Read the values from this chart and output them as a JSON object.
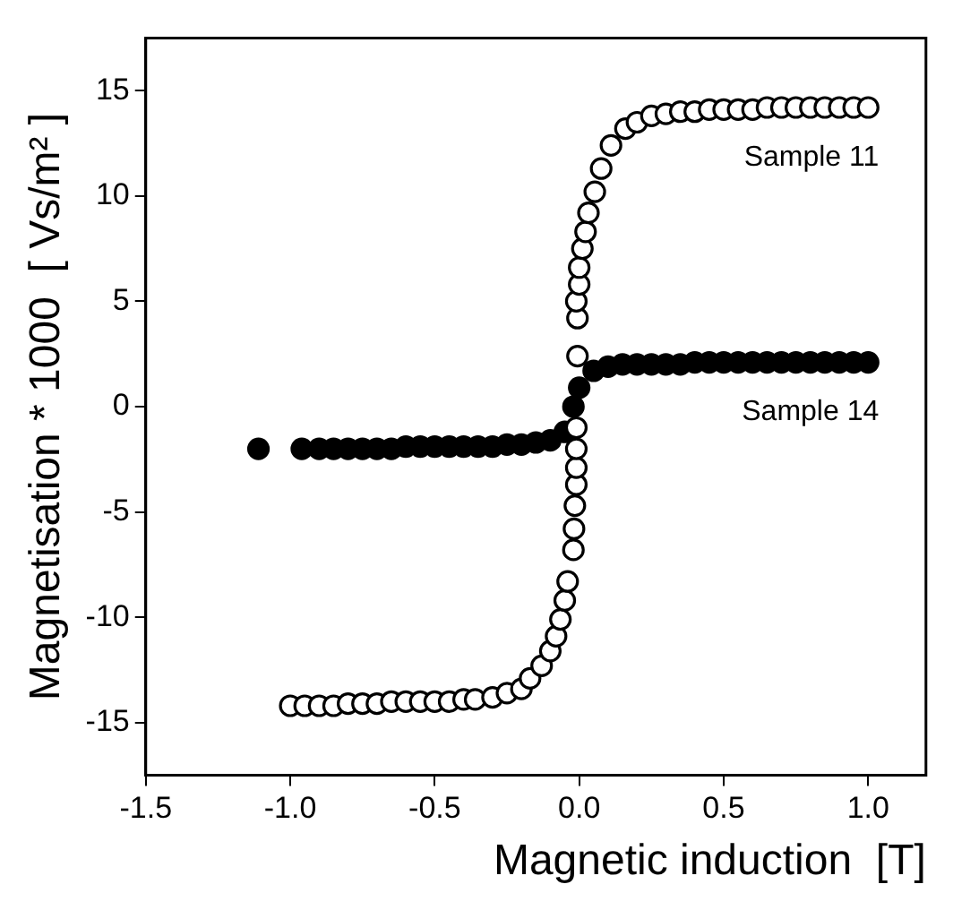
{
  "chart_data": {
    "type": "scatter",
    "xlabel": "Magnetic induction  [T]",
    "ylabel": "Magnetisation * 1000  [ Vs/m² ]",
    "xlim": [
      -1.5,
      1.2
    ],
    "xticks": [
      -1.5,
      {
        "value": -1,
        "label": "-1.0"
      },
      -0.5,
      {
        "value": 0,
        "label": "0.0"
      },
      0.5,
      {
        "value": 1,
        "label": "1.0"
      }
    ],
    "ylim": [
      -17.5,
      17.5
    ],
    "yticks": [
      -15,
      -10,
      -5,
      0,
      5,
      10,
      15
    ],
    "grid": false,
    "legend": false,
    "marker": "circle",
    "series": [
      {
        "name": "Sample 11",
        "color": "#000000",
        "x": [
          -1.0,
          -0.95,
          -0.9,
          -0.85,
          -0.8,
          -0.75,
          -0.7,
          -0.65,
          -0.6,
          -0.55,
          -0.5,
          -0.45,
          -0.4,
          -0.36,
          -0.3,
          -0.25,
          -0.2,
          -0.17,
          -0.13,
          -0.1,
          -0.08,
          -0.065,
          -0.05,
          -0.04,
          -0.02,
          -0.018,
          -0.015,
          -0.01,
          -0.01,
          -0.01,
          -0.01,
          -0.006,
          -0.006,
          -0.01,
          0.0,
          0.0,
          0.011,
          0.022,
          0.032,
          0.054,
          0.076,
          0.11,
          0.16,
          0.2,
          0.25,
          0.3,
          0.35,
          0.4,
          0.45,
          0.5,
          0.55,
          0.6,
          0.65,
          0.7,
          0.75,
          0.8,
          0.85,
          0.9,
          0.95,
          1.0
        ],
        "values": [
          -14.2,
          -14.2,
          -14.2,
          -14.2,
          -14.1,
          -14.1,
          -14.1,
          -14.0,
          -14.0,
          -14.0,
          -14.0,
          -14.0,
          -13.9,
          -13.9,
          -13.8,
          -13.6,
          -13.4,
          -12.9,
          -12.3,
          -11.6,
          -10.9,
          -10.1,
          -9.2,
          -8.3,
          -6.8,
          -5.8,
          -4.7,
          -3.7,
          -2.9,
          -2.0,
          -1.0,
          2.4,
          4.2,
          5.0,
          5.8,
          6.6,
          7.5,
          8.3,
          9.2,
          10.2,
          11.3,
          12.4,
          13.2,
          13.5,
          13.8,
          13.9,
          14.0,
          14.0,
          14.1,
          14.1,
          14.1,
          14.1,
          14.2,
          14.2,
          14.2,
          14.2,
          14.2,
          14.2,
          14.2,
          14.2
        ]
      },
      {
        "name": "Sample 14",
        "color": "#000000",
        "x": [
          -1.11,
          -0.96,
          -0.9,
          -0.85,
          -0.8,
          -0.75,
          -0.7,
          -0.65,
          -0.6,
          -0.55,
          -0.5,
          -0.45,
          -0.4,
          -0.35,
          -0.3,
          -0.25,
          -0.2,
          -0.15,
          -0.1,
          -0.05,
          -0.02,
          0.0,
          0.05,
          0.1,
          0.15,
          0.2,
          0.25,
          0.3,
          0.35,
          0.4,
          0.45,
          0.5,
          0.55,
          0.6,
          0.65,
          0.7,
          0.75,
          0.8,
          0.85,
          0.9,
          0.95,
          1.0
        ],
        "values": [
          -2.0,
          -2.0,
          -2.0,
          -2.0,
          -2.0,
          -2.0,
          -2.0,
          -2.0,
          -1.9,
          -1.9,
          -1.9,
          -1.9,
          -1.9,
          -1.9,
          -1.9,
          -1.8,
          -1.8,
          -1.7,
          -1.6,
          -1.2,
          0.0,
          0.9,
          1.7,
          1.9,
          2.0,
          2.0,
          2.0,
          2.0,
          2.0,
          2.1,
          2.1,
          2.1,
          2.1,
          2.1,
          2.1,
          2.1,
          2.1,
          2.1,
          2.1,
          2.1,
          2.1,
          2.1
        ]
      }
    ]
  }
}
